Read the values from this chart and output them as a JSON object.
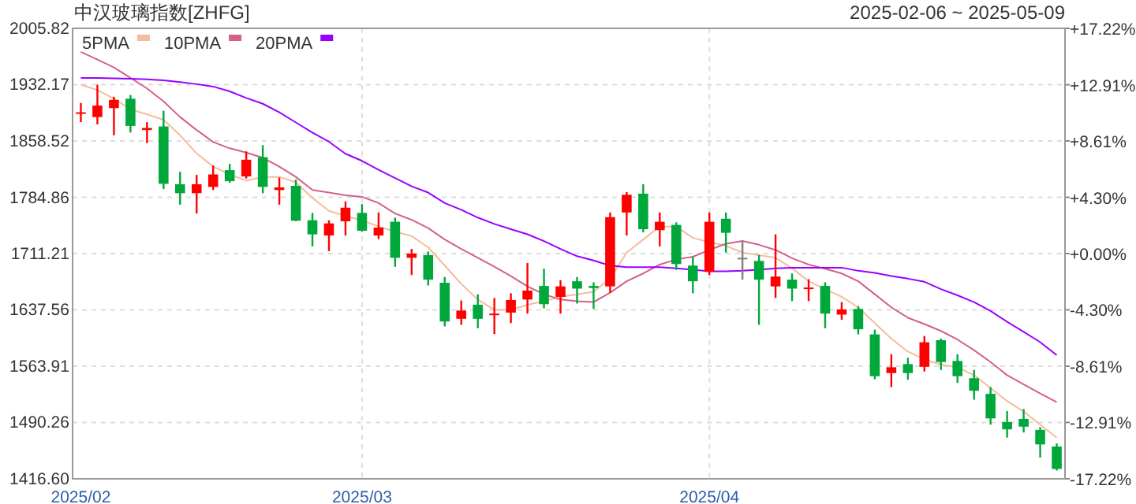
{
  "chart_data": {
    "type": "candlestick",
    "title": "中汉玻璃指数[ZHFG]",
    "subtitle": "2025-02-06 ~ 2025-05-09",
    "categories": [
      "2025/02",
      null,
      null,
      null,
      null,
      null,
      null,
      null,
      null,
      null,
      null,
      null,
      null,
      null,
      null,
      null,
      null,
      "2025/03",
      null,
      null,
      null,
      null,
      null,
      null,
      null,
      null,
      null,
      null,
      null,
      null,
      null,
      null,
      null,
      null,
      null,
      null,
      null,
      null,
      "2025/04",
      null,
      null,
      null,
      null,
      null,
      null,
      null,
      null,
      null,
      null,
      null,
      null,
      null,
      null,
      null,
      null,
      null,
      null,
      null,
      null,
      null
    ],
    "ohlc": [
      [
        1894.5,
        1908.2,
        1883.1,
        1896
      ],
      [
        1889.8,
        1932.2,
        1880.2,
        1904.8
      ],
      [
        1901.5,
        1916.4,
        1865.9,
        1912.3
      ],
      [
        1913.8,
        1918.5,
        1869.4,
        1878.2
      ],
      [
        1872.8,
        1883.1,
        1855.7,
        1875.5
      ],
      [
        1877.5,
        1898,
        1795.7,
        1802.5
      ],
      [
        1801.9,
        1818.2,
        1775.2,
        1790.2
      ],
      [
        1790.2,
        1814.1,
        1763.6,
        1801.9
      ],
      [
        1798.4,
        1826.4,
        1794.3,
        1814.7
      ],
      [
        1820.3,
        1828.5,
        1803.9,
        1805.9
      ],
      [
        1812.1,
        1844.8,
        1809.4,
        1834
      ],
      [
        1837.3,
        1853,
        1790.2,
        1798.4
      ],
      [
        1794.3,
        1810.7,
        1775.2,
        1797.8
      ],
      [
        1799.8,
        1808,
        1753.4,
        1754.2
      ],
      [
        1754.8,
        1764.4,
        1720.6,
        1736.4
      ],
      [
        1734.9,
        1754.8,
        1714.5,
        1750.7
      ],
      [
        1753.4,
        1779.4,
        1734.9,
        1771.2
      ],
      [
        1764.4,
        1775.9,
        1739.9,
        1741.1
      ],
      [
        1734.9,
        1765,
        1730.2,
        1745.2
      ],
      [
        1752.8,
        1758.3,
        1694,
        1705.7
      ],
      [
        1705.7,
        1717.3,
        1683.2,
        1711.2
      ],
      [
        1709.2,
        1713.9,
        1669.5,
        1677.1
      ],
      [
        1673,
        1680.5,
        1616,
        1622.4
      ],
      [
        1625.9,
        1649.8,
        1618,
        1636.7
      ],
      [
        1644.3,
        1658,
        1613.6,
        1625.9
      ],
      [
        1631.4,
        1653.1,
        1606,
        1632.7
      ],
      [
        1634,
        1659.3,
        1620.4,
        1650.5
      ],
      [
        1651.1,
        1698.9,
        1632.7,
        1662.8
      ],
      [
        1668.9,
        1691.4,
        1639.6,
        1645
      ],
      [
        1654.6,
        1676.4,
        1632.7,
        1668.3
      ],
      [
        1675,
        1680.5,
        1645.8,
        1665.4
      ],
      [
        1668.9,
        1673.6,
        1638.8,
        1666.2
      ],
      [
        1668.3,
        1765,
        1660.1,
        1758.9
      ],
      [
        1765,
        1791.6,
        1734.9,
        1788.1
      ],
      [
        1789.6,
        1801.9,
        1738.9,
        1743.1
      ],
      [
        1741.9,
        1765,
        1720.6,
        1752.8
      ],
      [
        1748.7,
        1752.1,
        1689.9,
        1697.5
      ],
      [
        1695.5,
        1707.1,
        1659.3,
        1675
      ],
      [
        1687.3,
        1765,
        1683.2,
        1752.8
      ],
      [
        1756.8,
        1765,
        1712.5,
        1738.4
      ],
      [
        1705.7,
        1728.2,
        1677.1,
        1705.7
      ],
      [
        1701.6,
        1709.2,
        1618,
        1677.1
      ],
      [
        1668.3,
        1736.4,
        1653.1,
        1681.2
      ],
      [
        1677.1,
        1685.2,
        1649,
        1665.4
      ],
      [
        1664.8,
        1677.7,
        1649,
        1666.8
      ],
      [
        1668.9,
        1673.6,
        1613.6,
        1632.7
      ],
      [
        1631.4,
        1647.8,
        1624.5,
        1638.2
      ],
      [
        1638.8,
        1642.3,
        1605.5,
        1612.2
      ],
      [
        1605.5,
        1611.6,
        1546.7,
        1550.8
      ],
      [
        1554.9,
        1579.5,
        1536.5,
        1562.5
      ],
      [
        1566.6,
        1574.8,
        1546.1,
        1554.9
      ],
      [
        1563.1,
        1603.4,
        1557,
        1595.2
      ],
      [
        1597.9,
        1599.9,
        1559,
        1569.3
      ],
      [
        1570.7,
        1579.5,
        1542,
        1550.8
      ],
      [
        1548.2,
        1559,
        1520.1,
        1531.8
      ],
      [
        1527.7,
        1536.5,
        1487.4,
        1495.6
      ],
      [
        1490.9,
        1505.2,
        1470.4,
        1481.3
      ],
      [
        1495,
        1507.9,
        1477.2,
        1484.8
      ],
      [
        1480.6,
        1484.2,
        1444.4,
        1461.6
      ],
      [
        1458.8,
        1462.8,
        1427.5,
        1429.5
      ]
    ],
    "colors": [
      "#ff0000",
      "#ff0000",
      "#ff0000",
      "#00a83c",
      "#ff0000",
      "#00a83c",
      "#00a83c",
      "#ff0000",
      "#ff0000",
      "#00a83c",
      "#ff0000",
      "#00a83c",
      "#ff0000",
      "#00a83c",
      "#00a83c",
      "#ff0000",
      "#ff0000",
      "#00a83c",
      "#ff0000",
      "#00a83c",
      "#ff0000",
      "#00a83c",
      "#00a83c",
      "#ff0000",
      "#00a83c",
      "#ff0000",
      "#ff0000",
      "#ff0000",
      "#00a83c",
      "#ff0000",
      "#00a83c",
      "#00a83c",
      "#ff0000",
      "#ff0000",
      "#00a83c",
      "#ff0000",
      "#00a83c",
      "#00a83c",
      "#ff0000",
      "#00a83c",
      "#808080",
      "#00a83c",
      "#ff0000",
      "#00a83c",
      "#ff0000",
      "#00a83c",
      "#ff0000",
      "#00a83c",
      "#00a83c",
      "#ff0000",
      "#00a83c",
      "#ff0000",
      "#00a83c",
      "#00a83c",
      "#00a83c",
      "#00a83c",
      "#00a83c",
      "#00a83c",
      "#00a83c",
      "#00a83c"
    ],
    "series": [
      {
        "type": "line",
        "name": "5PMA",
        "color": "#f5bc9c",
        "values": [
          1932.2,
          1925.2,
          1913.8,
          1900,
          1893.3,
          1886.3,
          1865.9,
          1842.2,
          1824.9,
          1814.7,
          1806.6,
          1811.5,
          1811.5,
          1804.5,
          1784.1,
          1767.1,
          1760.3,
          1754.8,
          1746.6,
          1739.9,
          1734,
          1719.4,
          1695.5,
          1671.5,
          1651.1,
          1637.6,
          1637.6,
          1644.3,
          1649,
          1654.6,
          1658,
          1661.3,
          1678.4,
          1712.5,
          1729.6,
          1746.6,
          1746.6,
          1731.7,
          1726.2,
          1721.4,
          1712.5,
          1709.2,
          1705.7,
          1692,
          1675,
          1664.8,
          1654.6,
          1640.9,
          1620.4,
          1599.9,
          1583,
          1572.7,
          1566,
          1562.5,
          1552.2,
          1535.3,
          1518.2,
          1504.6,
          1487.4,
          1470.4
        ]
      },
      {
        "type": "line",
        "name": "10PMA",
        "color": "#d5608a",
        "values": [
          1975.1,
          1964.9,
          1954.7,
          1941,
          1927.3,
          1910.3,
          1889.8,
          1872.8,
          1857.1,
          1848.9,
          1843.4,
          1836.6,
          1824.9,
          1811.5,
          1794.3,
          1791,
          1787.5,
          1785.5,
          1777.3,
          1763.6,
          1755.4,
          1744.6,
          1729.6,
          1717.3,
          1705.7,
          1694,
          1681.8,
          1668.3,
          1658,
          1651.1,
          1649,
          1647.8,
          1660.1,
          1675,
          1685.2,
          1696.8,
          1703.6,
          1707.1,
          1715.9,
          1724.1,
          1727.6,
          1722.7,
          1715.9,
          1705.1,
          1696.8,
          1691.4,
          1685.2,
          1675,
          1658,
          1640.9,
          1627.3,
          1619,
          1610,
          1598.7,
          1584.9,
          1569.3,
          1552.2,
          1540,
          1528.3,
          1516.9
        ]
      },
      {
        "type": "line",
        "name": "20PMA",
        "color": "#9900ff",
        "values": [
          1941,
          1941,
          1940.5,
          1940,
          1939,
          1937.9,
          1935.4,
          1932.8,
          1929.7,
          1923.4,
          1914.8,
          1907.2,
          1896,
          1882.7,
          1869.4,
          1857.5,
          1841.8,
          1832.5,
          1820.9,
          1810,
          1799.2,
          1791,
          1777.3,
          1768.5,
          1758.3,
          1750,
          1743.1,
          1736.4,
          1727.6,
          1717.3,
          1707.8,
          1702.2,
          1695.5,
          1693.4,
          1693.4,
          1693.4,
          1692,
          1690,
          1687.9,
          1687.9,
          1688.7,
          1690,
          1692,
          1692.8,
          1692.8,
          1692.8,
          1692.8,
          1688.7,
          1686,
          1681.8,
          1678.4,
          1674.3,
          1664.8,
          1656.6,
          1647.8,
          1636.2,
          1621.9,
          1608.9,
          1595.3,
          1578.3
        ]
      }
    ],
    "ylim": [
      1416.6,
      2005.82
    ],
    "yticks": [
      {
        "value": 1416.6,
        "label": "1416.60"
      },
      1490.26,
      1563.91,
      1637.56,
      1711.21,
      1784.86,
      1858.52,
      1932.17,
      2005.82
    ],
    "y2lim": [
      -17.22,
      17.22
    ],
    "y2ticks": [
      {
        "value": -17.22,
        "label": "-17.22%"
      },
      {
        "value": -12.91,
        "label": "-12.91%"
      },
      {
        "value": -8.61,
        "label": "-8.61%"
      },
      {
        "value": -4.3,
        "label": "-4.30%"
      },
      {
        "value": 0,
        "label": "+0.00%"
      },
      {
        "value": 4.3,
        "label": "+4.30%"
      },
      {
        "value": 8.61,
        "label": "+8.61%"
      },
      {
        "value": 12.91,
        "label": "+12.91%"
      },
      {
        "value": 17.22,
        "label": "+17.22%"
      }
    ],
    "grid": true,
    "legend": "top left"
  }
}
